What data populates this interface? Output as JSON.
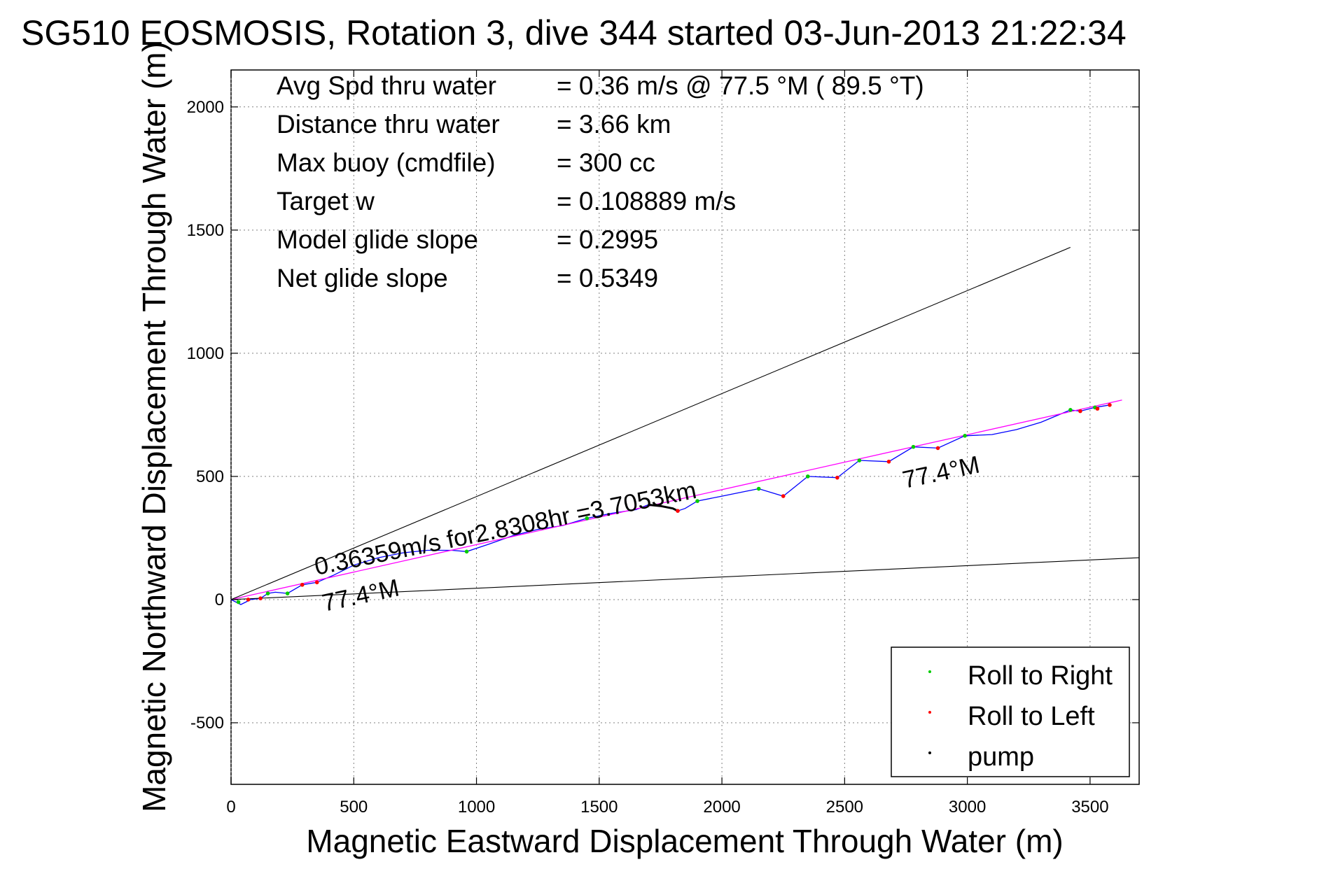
{
  "chart_data": {
    "type": "line",
    "title": "SG510 EOSMOSIS, Rotation 3, dive 344 started 03-Jun-2013 21:22:34",
    "xlabel": "Magnetic Eastward Displacement Through Water (m)",
    "ylabel": "Magnetic Northward Displacement Through Water (m)",
    "xlim": [
      0,
      3700
    ],
    "ylim": [
      -750,
      2150
    ],
    "xticks": [
      0,
      500,
      1000,
      1500,
      2000,
      2500,
      3000,
      3500
    ],
    "yticks": [
      -500,
      0,
      500,
      1000,
      1500,
      2000
    ],
    "grid": true,
    "legend_position": "bottom-right",
    "colors": {
      "track": "#0000ff",
      "fit": "#ff00ff",
      "guide": "#000000",
      "roll_right": "#00cc00",
      "roll_left": "#ff0000",
      "pump": "#000000"
    },
    "stats": [
      {
        "label": "Avg Spd thru water",
        "value": "=  0.36 m/s @  77.5 °M ( 89.5 °T)"
      },
      {
        "label": "Distance thru water",
        "value": "=  3.66 km"
      },
      {
        "label": "Max buoy (cmdfile)",
        "value": "= 300 cc"
      },
      {
        "label": "Target w",
        "value": "= 0.108889 m/s"
      },
      {
        "label": "Model glide slope",
        "value": "= 0.2995"
      },
      {
        "label": "Net glide slope",
        "value": "= 0.5349"
      }
    ],
    "annotations": {
      "speed": "0.36359m/s for2.8308hr =3.7053km",
      "heading_start": "77.4°M",
      "heading_end": "77.4°M"
    },
    "series": [
      {
        "name": "track",
        "x": [
          0,
          20,
          40,
          60,
          80,
          120,
          150,
          180,
          230,
          290,
          350,
          420,
          500,
          600,
          700,
          800,
          900,
          960,
          1050,
          1150,
          1250,
          1350,
          1450,
          1550,
          1650,
          1700,
          1750,
          1800,
          1820,
          1850,
          1900,
          2000,
          2100,
          2150,
          2250,
          2350,
          2470,
          2560,
          2680,
          2780,
          2880,
          2990,
          3100,
          3200,
          3300,
          3420,
          3460,
          3520,
          3580
        ],
        "y": [
          0,
          -10,
          -20,
          -10,
          0,
          5,
          25,
          30,
          25,
          60,
          70,
          100,
          140,
          170,
          190,
          200,
          200,
          195,
          225,
          260,
          285,
          300,
          330,
          350,
          365,
          385,
          380,
          370,
          360,
          370,
          400,
          420,
          440,
          450,
          420,
          500,
          495,
          565,
          560,
          620,
          615,
          665,
          670,
          690,
          720,
          770,
          765,
          780,
          790
        ]
      },
      {
        "name": "fit",
        "x": [
          0,
          3630
        ],
        "y": [
          0,
          810
        ]
      },
      {
        "name": "glide-slope-upper",
        "x": [
          0,
          3420
        ],
        "y": [
          0,
          1430
        ]
      },
      {
        "name": "glide-slope-lower",
        "x": [
          0,
          3700
        ],
        "y": [
          0,
          170
        ]
      },
      {
        "name": "Roll to Right",
        "x": [
          30,
          150,
          230,
          290,
          960,
          1450,
          1900,
          2150,
          2350,
          2560,
          2780,
          2990,
          3420,
          3520
        ],
        "y": [
          -10,
          25,
          25,
          60,
          195,
          330,
          400,
          450,
          500,
          565,
          620,
          665,
          770,
          780
        ]
      },
      {
        "name": "Roll to Left",
        "x": [
          70,
          120,
          290,
          350,
          1820,
          2250,
          2470,
          2680,
          2880,
          3460,
          3530,
          3580
        ],
        "y": [
          0,
          5,
          60,
          70,
          360,
          420,
          495,
          560,
          615,
          765,
          775,
          790
        ]
      },
      {
        "name": "pump",
        "x": [
          1700,
          1750,
          1800,
          1820
        ],
        "y": [
          385,
          380,
          370,
          360
        ]
      }
    ],
    "legend": [
      "Roll to Right",
      "Roll to Left",
      "pump"
    ]
  }
}
